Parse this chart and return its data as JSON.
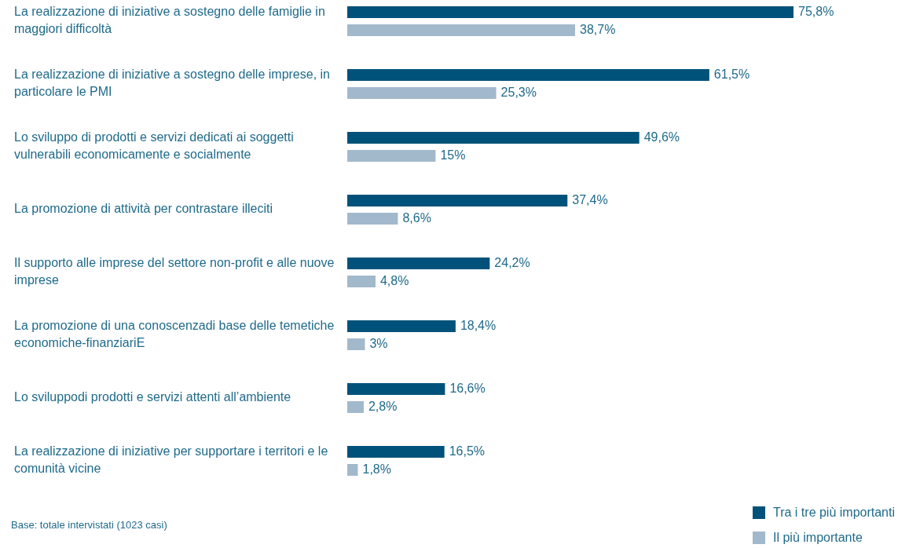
{
  "chart_data": {
    "type": "bar",
    "orientation": "horizontal",
    "categories": [
      "La realizzazione di iniziative a sostegno delle famiglie in maggiori difficoltà",
      "La realizzazione di iniziative a sostegno delle imprese, in particolare le PMI",
      "Lo sviluppo di prodotti e servizi dedicati ai soggetti vulnerabili economicamente e socialmente",
      "La promozione di attività per contrastare illeciti",
      "Il supporto alle imprese del settore non-profit e alle nuove imprese",
      "La promozione di una conoscenzadi base delle temetiche economiche-finanziariE",
      "Lo sviluppodi prodotti e servizi attenti all’ambiente",
      "La realizzazione di iniziative per supportare i territori e le comunità vicine"
    ],
    "series": [
      {
        "name": "Tra i tre più importanti",
        "color": "#00527a",
        "values": [
          75.8,
          61.5,
          49.6,
          37.4,
          24.2,
          18.4,
          16.6,
          16.5
        ],
        "value_labels": [
          "75,8%",
          "61,5%",
          "49,6%",
          "37,4%",
          "24,2%",
          "18,4%",
          "16,6%",
          "16,5%"
        ]
      },
      {
        "name": "Il più importante",
        "color": "#a2b9cc",
        "values": [
          38.7,
          25.3,
          15,
          8.6,
          4.8,
          3,
          2.8,
          1.8
        ],
        "value_labels": [
          "38,7%",
          "25,3%",
          "15%",
          "8,6%",
          "4,8%",
          "3%",
          "2,8%",
          "1,8%"
        ]
      }
    ],
    "data_labels": true,
    "legend": "bottom right",
    "annotations": [
      "Base: totale intervistati (1023 casi)"
    ]
  }
}
